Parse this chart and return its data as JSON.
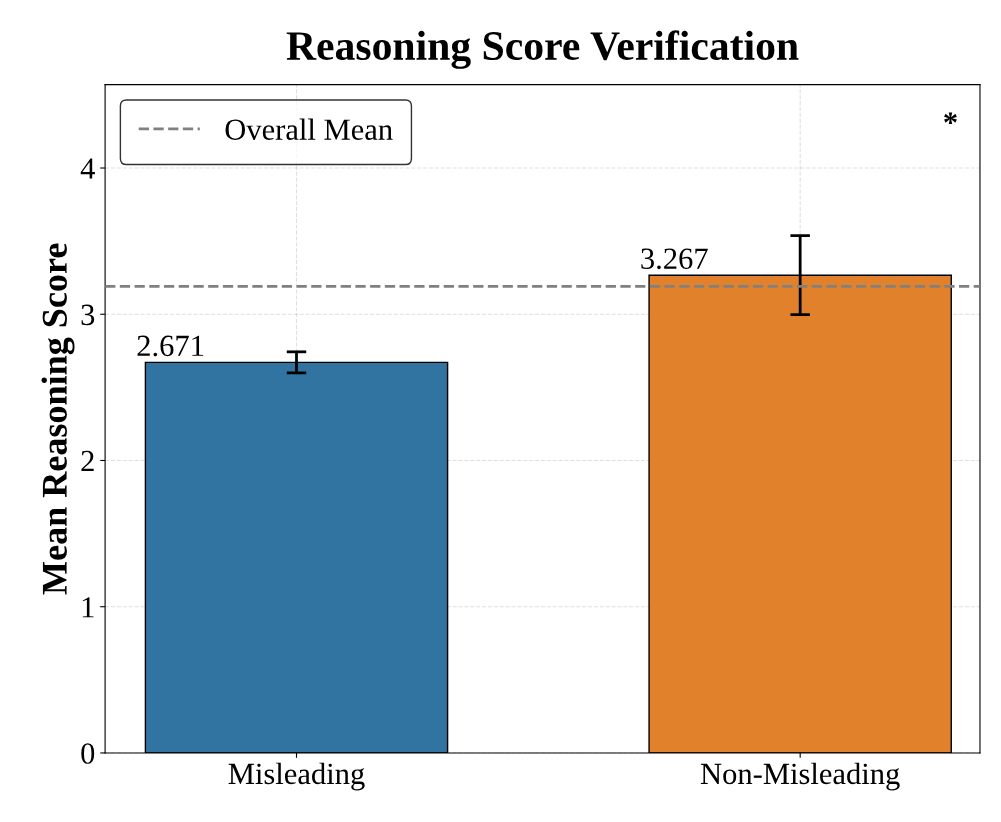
{
  "chart_data": {
    "type": "bar",
    "title": "Reasoning Score Verification",
    "ylabel": "Mean Reasoning Score",
    "categories": [
      "Misleading",
      "Non-Misleading"
    ],
    "values": [
      2.671,
      3.267
    ],
    "colors": [
      "#3274a1",
      "#e1812c"
    ],
    "errors": [
      0.072,
      0.27
    ],
    "data_labels": true,
    "ylim": [
      0,
      4.57
    ],
    "yticks": [
      0,
      1,
      2,
      3,
      4
    ],
    "ref_lines": [
      {
        "axis": "y",
        "value": 3.19,
        "label": "Overall Mean",
        "color": "#808080",
        "line_style": "dashed"
      }
    ],
    "annotations": [
      "*"
    ],
    "grid": true,
    "legend": "top left"
  }
}
